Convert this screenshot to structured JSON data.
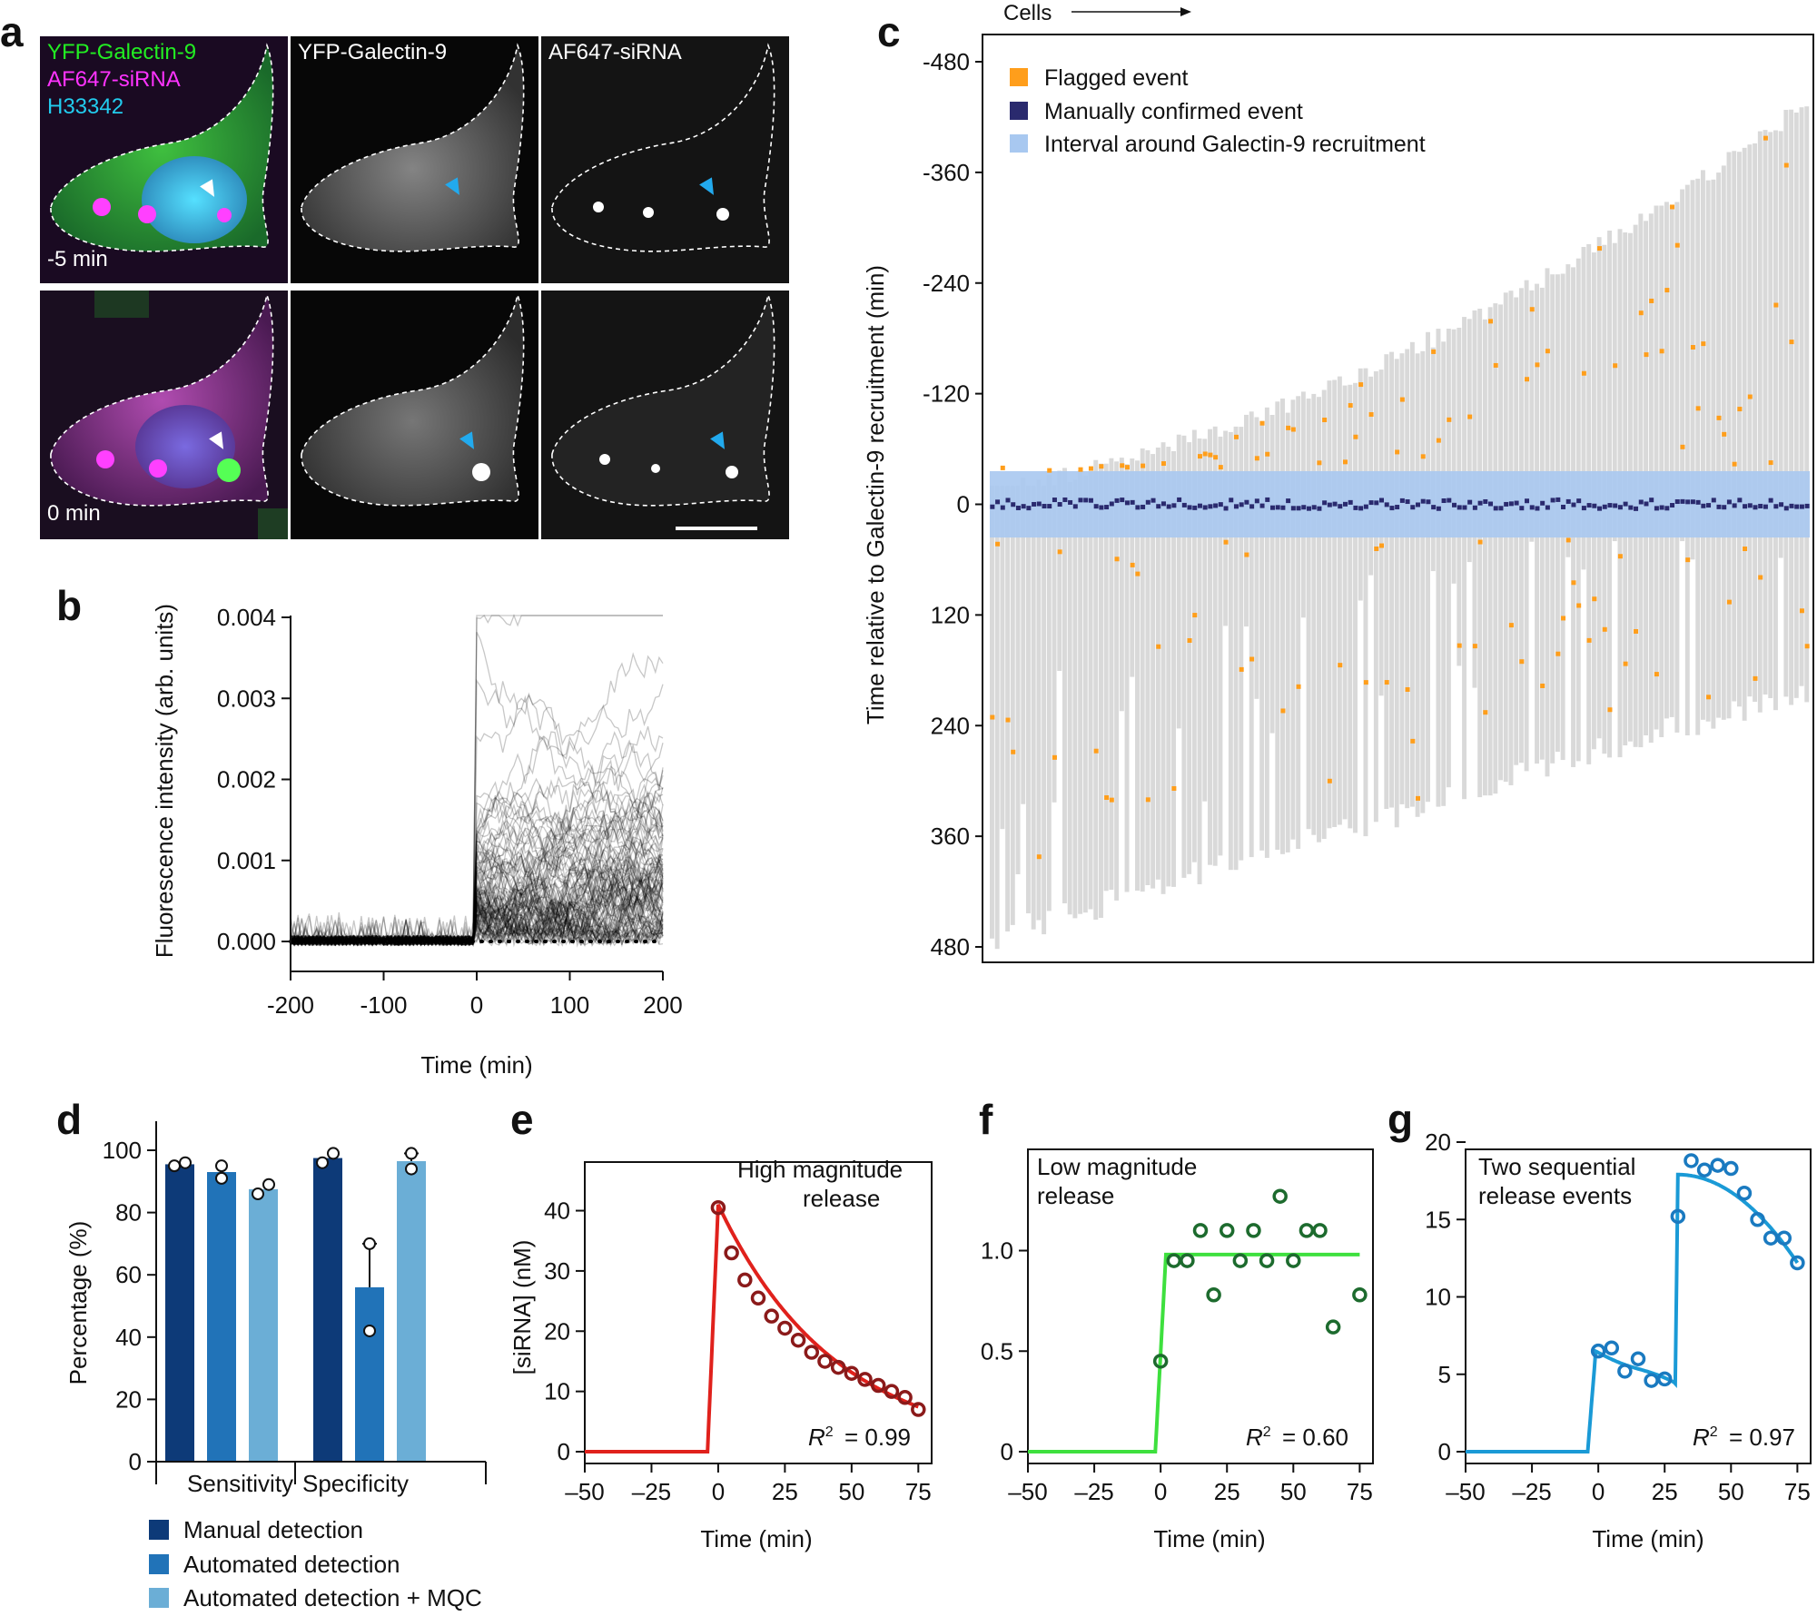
{
  "panel_letters": [
    "a",
    "b",
    "c",
    "d",
    "e",
    "f",
    "g"
  ],
  "panel_a": {
    "channel_labels": [
      "YFP-Galectin-9",
      "AF647-siRNA",
      "H33342"
    ],
    "column_titles": [
      "YFP-Galectin-9",
      "AF647-siRNA"
    ],
    "time_labels": [
      "-5 min",
      "0 min"
    ],
    "colors": {
      "galectin": "#22dd22",
      "sirna": "#ff22ff",
      "hoechst": "#22ccee",
      "arrow_white": "#ffffff",
      "arrow_blue": "#22aaee"
    }
  },
  "panel_b": {
    "chart_data": {
      "type": "line",
      "xlabel": "Time (min)",
      "ylabel": "Fluorescence intensity (arb. units)",
      "xlim": [
        -200,
        200
      ],
      "ylim": [
        0.0,
        0.004
      ],
      "x_ticks": [
        "-200",
        "-100",
        "0",
        "100",
        "200"
      ],
      "y_ticks": [
        "0.000",
        "0.001",
        "0.002",
        "0.003",
        "0.004"
      ],
      "baseline": 0.0,
      "jump_at": 0,
      "typical_post_level": 0.0009
    }
  },
  "panel_c": {
    "chart_data": {
      "type": "scatter",
      "xlabel": "Cells",
      "ylabel": "Time relative to Galectin-9 recruitment (min)",
      "ylim": [
        -480,
        480
      ],
      "y_ticks": [
        "-480",
        "-360",
        "-240",
        "-120",
        "0",
        "120",
        "240",
        "360",
        "480"
      ],
      "legend": [
        {
          "label": "Flagged event",
          "color": "#ff9e1b"
        },
        {
          "label": "Manually confirmed event",
          "color": "#2a2a6e"
        },
        {
          "label": "Interval around Galectin-9 recruitment",
          "color": "#a8c8f0"
        }
      ],
      "interval": [
        -30,
        30
      ]
    }
  },
  "panel_d": {
    "chart_data": {
      "type": "bar",
      "categories": [
        "Sensitivity",
        "Specificity"
      ],
      "series": [
        {
          "name": "Manual detection",
          "values": [
            95.5,
            97.5
          ],
          "color": "#0d3a78"
        },
        {
          "name": "Automated detection",
          "values": [
            93,
            56
          ],
          "color": "#2173b8"
        },
        {
          "name": "Automated detection + MQC",
          "values": [
            87.5,
            96.5
          ],
          "color": "#6baed6"
        }
      ],
      "ylabel": "Percentage (%)",
      "ylim": [
        0,
        100
      ],
      "y_ticks": [
        "0",
        "20",
        "40",
        "60",
        "80",
        "100"
      ],
      "points": [
        [
          [
            95,
            96
          ],
          [
            95,
            91
          ],
          [
            86,
            89
          ]
        ],
        [
          [
            96,
            99
          ],
          [
            70,
            42
          ],
          [
            99,
            94
          ]
        ]
      ]
    }
  },
  "panel_e": {
    "chart_data": {
      "type": "scatter",
      "annotation": [
        "High magnitude",
        "release"
      ],
      "r2": "= 0.99",
      "xlabel": "Time (min)",
      "ylabel": "[siRNA] (nM)",
      "xlim": [
        -50,
        80
      ],
      "ylim": [
        0,
        44
      ],
      "x_ticks": [
        "–50",
        "–25",
        "0",
        "25",
        "50",
        "75"
      ],
      "y_ticks": [
        "0",
        "10",
        "20",
        "30",
        "40"
      ],
      "color": "#e0211c",
      "point_color": "#8b1a1a",
      "x": [
        0,
        2.5,
        5,
        7.5,
        10,
        12.5,
        15,
        17.5,
        20,
        22.5,
        25,
        27.5,
        30,
        32.5,
        35,
        37.5,
        40,
        42.5,
        45,
        47.5,
        50,
        52.5,
        55,
        57.5,
        60,
        62.5,
        65,
        67.5,
        70,
        72.5,
        75
      ],
      "points": [
        [
          0,
          40.5
        ],
        [
          5,
          33
        ],
        [
          10,
          28.5
        ],
        [
          15,
          25.5
        ],
        [
          20,
          22.5
        ],
        [
          25,
          20.5
        ],
        [
          30,
          18.5
        ],
        [
          35,
          16.5
        ],
        [
          40,
          15
        ],
        [
          45,
          14
        ],
        [
          50,
          13
        ],
        [
          55,
          12
        ],
        [
          60,
          11
        ],
        [
          65,
          10
        ],
        [
          70,
          9
        ],
        [
          75,
          7
        ]
      ]
    }
  },
  "panel_f": {
    "chart_data": {
      "type": "scatter",
      "annotation": [
        "Low magnitude",
        "release"
      ],
      "r2": "= 0.60",
      "xlabel": "Time (min)",
      "ylabel": "",
      "xlim": [
        -50,
        80
      ],
      "ylim": [
        0,
        1.35
      ],
      "x_ticks": [
        "–50",
        "–25",
        "0",
        "25",
        "50",
        "75"
      ],
      "y_ticks": [
        "0",
        "0.5",
        "1.0"
      ],
      "color": "#3ee03e",
      "point_color": "#1d6b2e",
      "plateau": 0.98,
      "points": [
        [
          0,
          0.45
        ],
        [
          5,
          0.95
        ],
        [
          10,
          0.95
        ],
        [
          15,
          1.1
        ],
        [
          20,
          0.78
        ],
        [
          25,
          1.1
        ],
        [
          30,
          0.95
        ],
        [
          35,
          1.1
        ],
        [
          40,
          0.95
        ],
        [
          45,
          1.27
        ],
        [
          50,
          0.95
        ],
        [
          55,
          1.1
        ],
        [
          60,
          1.1
        ],
        [
          65,
          0.62
        ],
        [
          75,
          0.78
        ]
      ]
    }
  },
  "panel_g": {
    "chart_data": {
      "type": "scatter",
      "annotation": [
        "Two sequential",
        "release events"
      ],
      "r2": "= 0.97",
      "xlabel": "Time (min)",
      "ylabel": "",
      "xlim": [
        -50,
        80
      ],
      "ylim": [
        0,
        20
      ],
      "x_ticks": [
        "–50",
        "–25",
        "0",
        "25",
        "50",
        "75"
      ],
      "y_ticks": [
        "0",
        "5",
        "10",
        "15",
        "20"
      ],
      "color": "#1a9ad6",
      "point_color": "#1a7ac0",
      "points": [
        [
          0,
          6.5
        ],
        [
          5,
          6.7
        ],
        [
          10,
          5.2
        ],
        [
          15,
          6
        ],
        [
          20,
          4.6
        ],
        [
          25,
          4.7
        ],
        [
          30,
          15.2
        ],
        [
          35,
          18.8
        ],
        [
          40,
          18.2
        ],
        [
          45,
          18.5
        ],
        [
          50,
          18.3
        ],
        [
          55,
          16.7
        ],
        [
          60,
          15
        ],
        [
          65,
          13.8
        ],
        [
          70,
          13.8
        ],
        [
          75,
          12.2
        ]
      ]
    }
  }
}
